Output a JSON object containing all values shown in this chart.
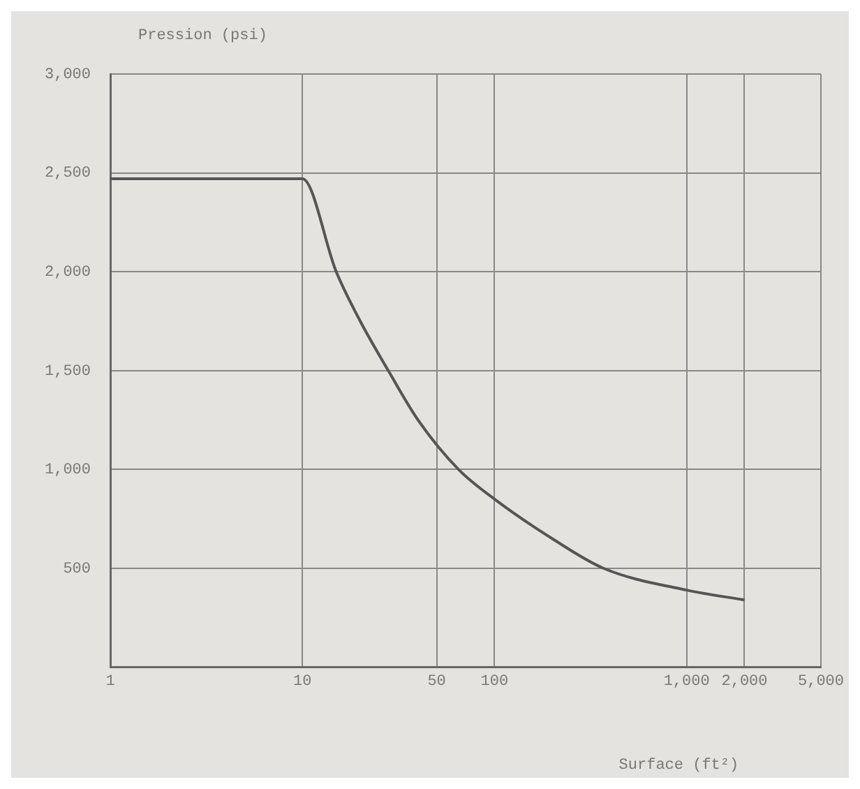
{
  "chart_data": {
    "type": "line",
    "ylabel": "Pression (psi)",
    "xlabel": "Surface (ft²)",
    "log": "x",
    "xlim": [
      1,
      5000
    ],
    "xticks": [
      1,
      10,
      50,
      100,
      {
        "value": 1000,
        "label": "1,000"
      },
      {
        "value": 2000,
        "label": "2,000"
      },
      {
        "value": 5000,
        "label": "5,000"
      }
    ],
    "ylim": [
      0,
      3000
    ],
    "yticks": [
      {
        "value": 0,
        "label": null
      },
      500,
      {
        "value": 1000,
        "label": "1,000"
      },
      {
        "value": 1500,
        "label": "1,500"
      },
      {
        "value": 2000,
        "label": "2,000"
      },
      {
        "value": 2500,
        "label": "2,500"
      },
      {
        "value": 3000,
        "label": "3,000"
      }
    ],
    "grid": true,
    "marker": "none",
    "line_style": "solid",
    "series": [
      {
        "color": "#555555",
        "x": [
          1,
          10,
          15,
          20,
          28,
          40,
          65,
          100,
          200,
          370,
          1000,
          2000
        ],
        "values": [
          2470,
          2470,
          2000,
          1750,
          1500,
          1250,
          1000,
          850,
          650,
          500,
          390,
          340
        ]
      }
    ]
  }
}
